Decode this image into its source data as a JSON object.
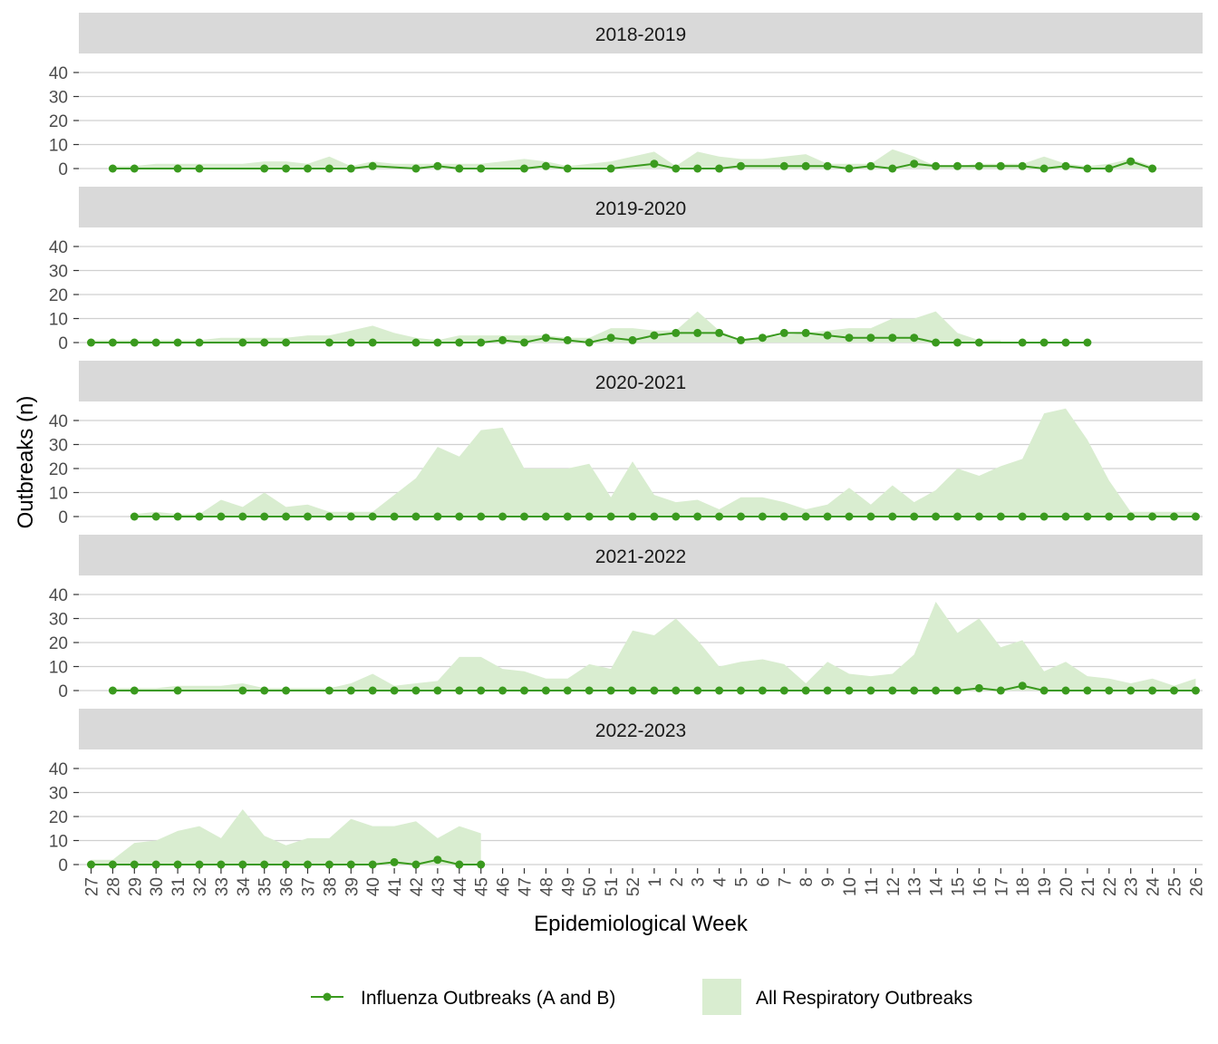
{
  "chart_data": {
    "type": "line",
    "xlabel": "Epidemiological Week",
    "ylabel": "Outbreaks (n)",
    "ylim": [
      0,
      45
    ],
    "yticks": [
      0,
      10,
      20,
      30,
      40
    ],
    "grid": true,
    "legend_position": "bottom",
    "x": [
      "27",
      "28",
      "29",
      "30",
      "31",
      "32",
      "33",
      "34",
      "35",
      "36",
      "37",
      "38",
      "39",
      "40",
      "41",
      "42",
      "43",
      "44",
      "45",
      "46",
      "47",
      "48",
      "49",
      "50",
      "51",
      "52",
      "1",
      "2",
      "3",
      "4",
      "5",
      "6",
      "7",
      "8",
      "9",
      "10",
      "11",
      "12",
      "13",
      "14",
      "15",
      "16",
      "17",
      "18",
      "19",
      "20",
      "21",
      "22",
      "23",
      "24",
      "25",
      "26"
    ],
    "legend": [
      {
        "label": "Influenza Outbreaks (A and B)",
        "kind": "line",
        "color": "#3a9a1e"
      },
      {
        "label": "All Respiratory Outbreaks",
        "kind": "area",
        "color": "#d9edd0"
      }
    ],
    "colors": {
      "influenza": "#3a9a1e",
      "all_resp": "#d9edd0"
    },
    "panels": [
      {
        "season": "2018-2019",
        "all_resp": [
          null,
          1,
          1,
          2,
          2,
          2,
          2,
          2,
          3,
          3,
          2,
          5,
          1,
          3,
          2,
          2,
          2,
          2,
          2,
          3,
          4,
          3,
          1,
          2,
          3,
          5,
          7,
          1,
          7,
          5,
          4,
          4,
          5,
          6,
          2,
          2,
          2,
          8,
          5,
          1,
          1,
          2,
          2,
          2,
          5,
          2,
          1,
          2,
          4,
          1,
          null,
          null
        ],
        "influenza": [
          null,
          0,
          0,
          null,
          0,
          0,
          null,
          null,
          0,
          0,
          0,
          0,
          0,
          1,
          null,
          0,
          1,
          0,
          0,
          null,
          0,
          1,
          0,
          null,
          0,
          null,
          2,
          0,
          0,
          0,
          1,
          null,
          1,
          1,
          1,
          0,
          1,
          0,
          2,
          1,
          1,
          1,
          1,
          1,
          0,
          1,
          0,
          0,
          3,
          0,
          null,
          null
        ]
      },
      {
        "season": "2019-2020",
        "all_resp": [
          1,
          1,
          1,
          1,
          1,
          1,
          2,
          2,
          2,
          2,
          3,
          3,
          5,
          7,
          4,
          2,
          1,
          3,
          3,
          3,
          3,
          3,
          2,
          2,
          6,
          6,
          5,
          5,
          13,
          5,
          1,
          2,
          3,
          4,
          5,
          6,
          6,
          10,
          10,
          13,
          4,
          1,
          1,
          null,
          null,
          null,
          null,
          null,
          null,
          null,
          null,
          null
        ],
        "influenza": [
          0,
          0,
          0,
          0,
          0,
          0,
          null,
          0,
          0,
          0,
          null,
          0,
          0,
          0,
          null,
          0,
          0,
          0,
          0,
          1,
          0,
          2,
          1,
          0,
          2,
          1,
          3,
          4,
          4,
          4,
          1,
          2,
          4,
          4,
          3,
          2,
          2,
          2,
          2,
          0,
          0,
          0,
          null,
          0,
          0,
          0,
          0,
          null,
          null,
          null,
          null,
          null
        ]
      },
      {
        "season": "2020-2021",
        "all_resp": [
          null,
          null,
          1,
          2,
          1,
          1,
          7,
          4,
          10,
          4,
          5,
          2,
          2,
          2,
          9,
          16,
          29,
          25,
          36,
          37,
          20,
          20,
          20,
          22,
          8,
          23,
          9,
          6,
          7,
          3,
          8,
          8,
          6,
          3,
          5,
          12,
          5,
          13,
          6,
          11,
          20,
          17,
          21,
          24,
          43,
          45,
          32,
          15,
          2,
          2,
          2,
          2
        ],
        "influenza": [
          null,
          null,
          0,
          0,
          0,
          0,
          0,
          0,
          0,
          0,
          0,
          0,
          0,
          0,
          0,
          0,
          0,
          0,
          0,
          0,
          0,
          0,
          0,
          0,
          0,
          0,
          0,
          0,
          0,
          0,
          0,
          0,
          0,
          0,
          0,
          0,
          0,
          0,
          0,
          0,
          0,
          0,
          0,
          0,
          0,
          0,
          0,
          0,
          0,
          0,
          0,
          0
        ]
      },
      {
        "season": "2021-2022",
        "all_resp": [
          null,
          1,
          1,
          1,
          2,
          2,
          2,
          3,
          1,
          1,
          1,
          1,
          3,
          7,
          2,
          3,
          4,
          14,
          14,
          9,
          8,
          5,
          5,
          11,
          9,
          25,
          23,
          30,
          21,
          10,
          12,
          13,
          11,
          3,
          12,
          7,
          6,
          7,
          15,
          37,
          24,
          30,
          18,
          21,
          8,
          12,
          6,
          5,
          3,
          5,
          2,
          5
        ],
        "influenza": [
          null,
          0,
          0,
          null,
          0,
          null,
          null,
          0,
          0,
          0,
          null,
          0,
          0,
          0,
          0,
          0,
          0,
          0,
          0,
          0,
          0,
          0,
          0,
          0,
          0,
          0,
          0,
          0,
          0,
          0,
          0,
          0,
          0,
          0,
          0,
          0,
          0,
          0,
          0,
          0,
          0,
          1,
          0,
          2,
          0,
          0,
          0,
          0,
          0,
          0,
          0,
          0
        ]
      },
      {
        "season": "2022-2023",
        "all_resp": [
          2,
          2,
          9,
          10,
          14,
          16,
          11,
          23,
          12,
          8,
          11,
          11,
          19,
          16,
          16,
          18,
          11,
          16,
          13,
          null,
          null,
          null,
          null,
          null,
          null,
          null,
          null,
          null,
          null,
          null,
          null,
          null,
          null,
          null,
          null,
          null,
          null,
          null,
          null,
          null,
          null,
          null,
          null,
          null,
          null,
          null,
          null,
          null,
          null,
          null,
          null,
          null
        ],
        "influenza": [
          0,
          0,
          0,
          0,
          0,
          0,
          0,
          0,
          0,
          0,
          0,
          0,
          0,
          0,
          1,
          0,
          2,
          0,
          0,
          null,
          null,
          null,
          null,
          null,
          null,
          null,
          null,
          null,
          null,
          null,
          null,
          null,
          null,
          null,
          null,
          null,
          null,
          null,
          null,
          null,
          null,
          null,
          null,
          null,
          null,
          null,
          null,
          null,
          null,
          null,
          null,
          null
        ]
      }
    ]
  }
}
